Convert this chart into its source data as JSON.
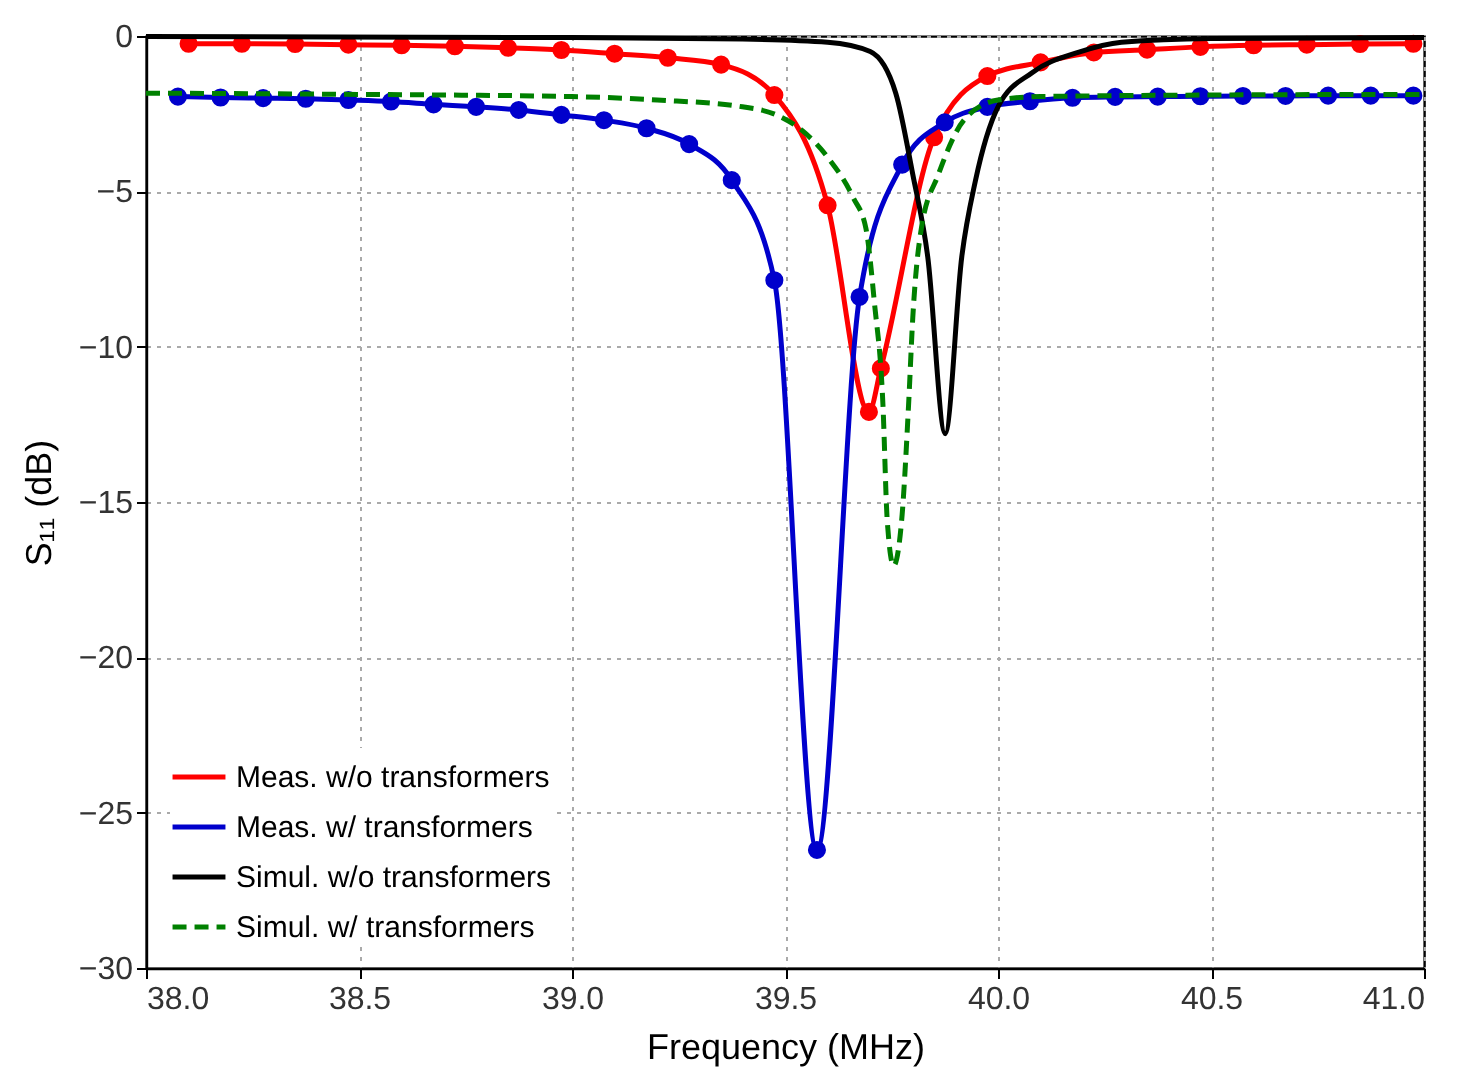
{
  "chart_data": {
    "type": "line",
    "xlabel": "Frequency (MHz)",
    "ylabel": "S₁₁ (dB)",
    "xlim": [
      38.0,
      41.0
    ],
    "ylim": [
      -30,
      0
    ],
    "xticks": [
      {
        "value": 38,
        "label": "38.0"
      },
      38.5,
      {
        "value": 39,
        "label": "39.0"
      },
      39.5,
      {
        "value": 40,
        "label": "40.0"
      },
      40.5,
      {
        "value": 41,
        "label": "41.0"
      }
    ],
    "yticks": [
      -30,
      -25,
      -20,
      -15,
      -10,
      -5,
      0
    ],
    "grid": true,
    "legend": "bottom left",
    "series": [
      {
        "name": "Meas. w/o transformers",
        "color": "#ff0000",
        "marker": "circle",
        "line_style": "solid",
        "x": [
          38.1,
          38.225,
          38.35,
          38.475,
          38.6,
          38.725,
          38.85,
          38.975,
          39.1,
          39.225,
          39.35,
          39.475,
          39.6,
          39.697,
          39.725,
          39.85,
          39.975,
          40.1,
          40.225,
          40.35,
          40.475,
          40.6,
          40.725,
          40.85,
          40.975
        ],
        "values": [
          -0.25,
          -0.25,
          -0.26,
          -0.28,
          -0.3,
          -0.33,
          -0.38,
          -0.45,
          -0.57,
          -0.7,
          -0.92,
          -1.9,
          -5.45,
          -12.1,
          -10.7,
          -3.26,
          -1.29,
          -0.85,
          -0.53,
          -0.44,
          -0.35,
          -0.3,
          -0.28,
          -0.26,
          -0.25
        ]
      },
      {
        "name": "Meas. w/ transformers",
        "color": "#0000cc",
        "marker": "circle",
        "line_style": "solid",
        "x": [
          38.075,
          38.175,
          38.275,
          38.375,
          38.475,
          38.575,
          38.675,
          38.775,
          38.875,
          38.975,
          39.075,
          39.175,
          39.275,
          39.375,
          39.475,
          39.575,
          39.675,
          39.775,
          39.875,
          39.975,
          40.075,
          40.175,
          40.275,
          40.375,
          40.475,
          40.575,
          40.675,
          40.775,
          40.875,
          40.975
        ],
        "values": [
          -1.95,
          -1.98,
          -2.0,
          -2.02,
          -2.06,
          -2.11,
          -2.2,
          -2.28,
          -2.38,
          -2.54,
          -2.71,
          -2.97,
          -3.48,
          -4.64,
          -7.86,
          -26.2,
          -8.4,
          -4.14,
          -2.78,
          -2.28,
          -2.1,
          -1.99,
          -1.96,
          -1.95,
          -1.94,
          -1.93,
          -1.93,
          -1.92,
          -1.92,
          -1.92
        ]
      },
      {
        "name": "Simul. w/o transformers",
        "color": "#000000",
        "marker": "none",
        "line_style": "solid",
        "x": [
          38.0,
          39.0,
          39.4,
          39.6,
          39.7,
          39.76,
          39.8,
          39.835,
          39.876,
          39.915,
          39.947,
          40.0,
          40.08,
          40.19,
          40.29,
          40.5,
          41.0
        ],
        "values": [
          -0.02,
          -0.05,
          -0.1,
          -0.2,
          -0.5,
          -1.84,
          -4.46,
          -7.1,
          -12.8,
          -7.1,
          -4.66,
          -2.28,
          -1.18,
          -0.52,
          -0.2,
          -0.08,
          -0.05
        ]
      },
      {
        "name": "Simul. w/ transformers",
        "color": "#008000",
        "marker": "none",
        "line_style": "dashed",
        "x": [
          38.0,
          38.5,
          39.0,
          39.2,
          39.4,
          39.48,
          39.54,
          39.6,
          39.66,
          39.69,
          39.71,
          39.73,
          39.74,
          39.755,
          39.775,
          39.79,
          39.8,
          39.82,
          39.86,
          39.92,
          40.0,
          40.1,
          40.5,
          41.0
        ],
        "values": [
          -1.84,
          -1.88,
          -1.95,
          -2.06,
          -2.28,
          -2.54,
          -3.04,
          -3.9,
          -5.2,
          -6.2,
          -8.6,
          -11.9,
          -15.6,
          -17.05,
          -15.4,
          -11.9,
          -9.06,
          -6.2,
          -4.46,
          -2.71,
          -2.06,
          -1.95,
          -1.9,
          -1.88
        ]
      }
    ]
  }
}
